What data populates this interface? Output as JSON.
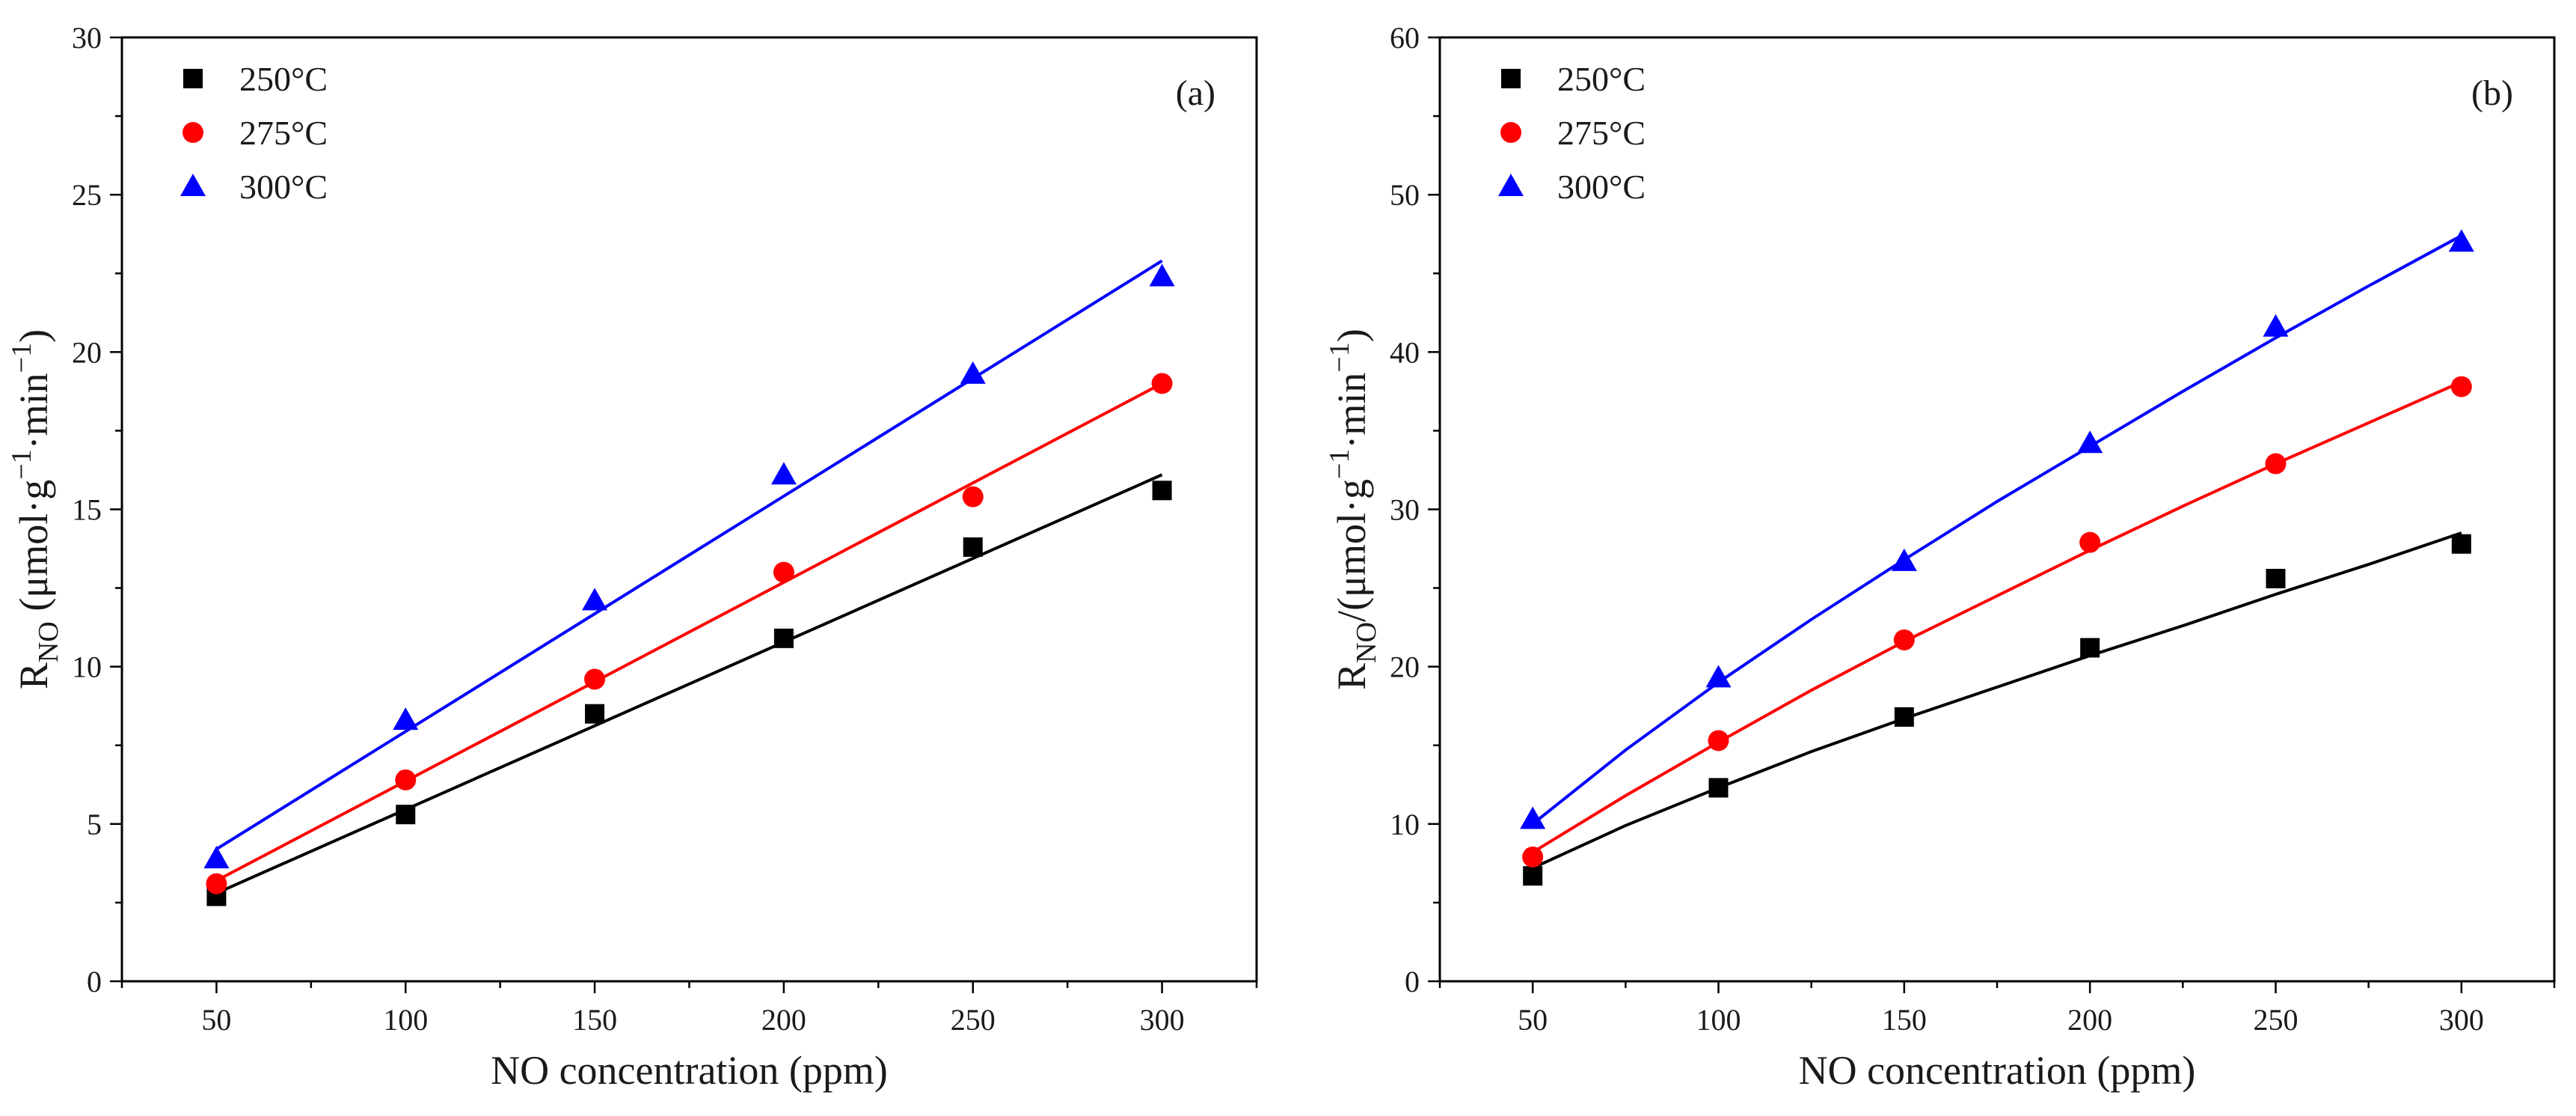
{
  "chart_data": [
    {
      "type": "scatter",
      "panel_label": "(a)",
      "xlabel": "NO concentration (ppm)",
      "ylabel": {
        "base": "R",
        "sub": "NO",
        "mid": " (μmol·g",
        "sup1": "−1",
        "mid2": "·min",
        "sup2": "−1",
        "end": ")"
      },
      "xlim": [
        25,
        325
      ],
      "ylim": [
        0,
        30
      ],
      "xticks": [
        50,
        100,
        150,
        200,
        250,
        300
      ],
      "yticks": [
        0,
        5,
        10,
        15,
        20,
        25,
        30
      ],
      "legend_position": "top-left",
      "grid": false,
      "series": [
        {
          "name": "250°C",
          "color": "#000000",
          "marker": "square",
          "x": [
            50,
            100,
            150,
            200,
            250,
            300
          ],
          "y": [
            2.7,
            5.3,
            8.5,
            10.9,
            13.8,
            15.6
          ],
          "fit": {
            "x": [
              50,
              300
            ],
            "y": [
              2.8,
              16.1
            ]
          }
        },
        {
          "name": "275°C",
          "color": "#ff0000",
          "marker": "circle",
          "x": [
            50,
            100,
            150,
            200,
            250,
            300
          ],
          "y": [
            3.1,
            6.4,
            9.6,
            13.0,
            15.4,
            19.0
          ],
          "fit": {
            "x": [
              50,
              300
            ],
            "y": [
              3.2,
              19.0
            ]
          }
        },
        {
          "name": "300°C",
          "color": "#0000ff",
          "marker": "triangle",
          "x": [
            50,
            100,
            150,
            200,
            250,
            300
          ],
          "y": [
            3.9,
            8.3,
            12.1,
            16.1,
            19.3,
            22.4
          ],
          "fit": {
            "x": [
              50,
              300
            ],
            "y": [
              4.2,
              22.9
            ]
          }
        }
      ]
    },
    {
      "type": "scatter",
      "panel_label": "(b)",
      "xlabel": "NO concentration (ppm)",
      "ylabel": {
        "base": "R",
        "sub": "NO",
        "mid": "/(μmol·g",
        "sup1": "−1",
        "mid2": "·min",
        "sup2": "−1",
        "end": ")"
      },
      "xlim": [
        25,
        325
      ],
      "ylim": [
        0,
        60
      ],
      "xticks": [
        50,
        100,
        150,
        200,
        250,
        300
      ],
      "yticks": [
        0,
        10,
        20,
        30,
        40,
        50,
        60
      ],
      "legend_position": "top-left",
      "grid": false,
      "series": [
        {
          "name": "250°C",
          "color": "#000000",
          "marker": "square",
          "x": [
            50,
            100,
            150,
            200,
            250,
            300
          ],
          "y": [
            6.7,
            12.3,
            16.8,
            21.2,
            25.6,
            27.8
          ],
          "fit": {
            "x": [
              50,
              75,
              100,
              125,
              150,
              175,
              200,
              225,
              250,
              275,
              300
            ],
            "y": [
              7.2,
              9.9,
              12.3,
              14.6,
              16.7,
              18.7,
              20.7,
              22.6,
              24.6,
              26.5,
              28.5
            ]
          }
        },
        {
          "name": "275°C",
          "color": "#ff0000",
          "marker": "circle",
          "x": [
            50,
            100,
            150,
            200,
            250,
            300
          ],
          "y": [
            7.9,
            15.3,
            21.7,
            27.9,
            32.9,
            37.8
          ],
          "fit": {
            "x": [
              50,
              75,
              100,
              125,
              150,
              175,
              200,
              225,
              250,
              275,
              300
            ],
            "y": [
              8.2,
              11.8,
              15.2,
              18.5,
              21.6,
              24.5,
              27.4,
              30.2,
              32.9,
              35.5,
              38.1
            ]
          }
        },
        {
          "name": "300°C",
          "color": "#0000ff",
          "marker": "triangle",
          "x": [
            50,
            100,
            150,
            200,
            250,
            300
          ],
          "y": [
            10.3,
            19.3,
            26.7,
            34.2,
            41.6,
            47.0
          ],
          "fit": {
            "x": [
              50,
              75,
              100,
              125,
              150,
              175,
              200,
              225,
              250,
              275,
              300
            ],
            "y": [
              10.0,
              14.7,
              19.0,
              23.0,
              26.8,
              30.5,
              34.0,
              37.5,
              40.9,
              44.2,
              47.4
            ]
          }
        }
      ]
    }
  ]
}
